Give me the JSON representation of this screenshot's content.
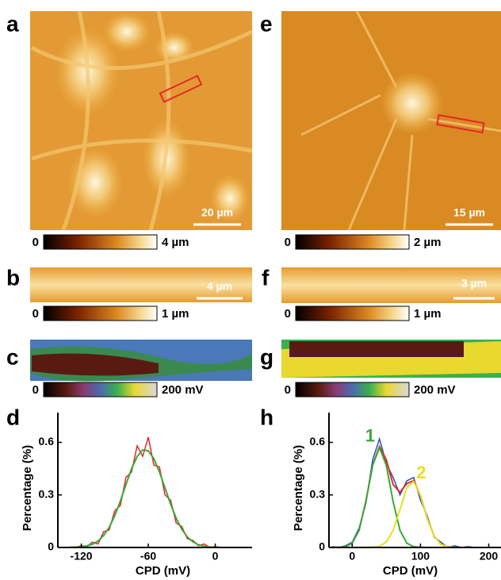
{
  "panels": {
    "a": {
      "label": "a",
      "scale_bar": "20 µm"
    },
    "b": {
      "label": "b",
      "scale_bar": "4 µm"
    },
    "c": {
      "label": "c"
    },
    "d": {
      "label": "d"
    },
    "e": {
      "label": "e",
      "scale_bar": "15 µm"
    },
    "f": {
      "label": "f",
      "scale_bar": "3 µm"
    },
    "g": {
      "label": "g"
    },
    "h": {
      "label": "h"
    }
  },
  "colorbars": [
    {
      "min": "0",
      "max": "4 µm"
    },
    {
      "min": "0",
      "max": "1 µm"
    },
    {
      "min": "0",
      "max": "200 mV"
    },
    {
      "min": "0",
      "max": "2 µm"
    },
    {
      "min": "0",
      "max": "1 µm"
    },
    {
      "min": "0",
      "max": "200 mV"
    }
  ],
  "chart_data": [
    {
      "type": "line",
      "x_label": "CPD (mV)",
      "y_label": "Percentage (%)",
      "xlim": [
        -141,
        33
      ],
      "ylim": [
        0,
        0.77
      ],
      "xticks": [
        -120,
        -60,
        0
      ],
      "yticks": [
        0,
        0.3,
        0.6
      ],
      "x": [
        -130,
        -125,
        -120,
        -115,
        -110,
        -105,
        -100,
        -95,
        -90,
        -85,
        -80,
        -75,
        -70,
        -65,
        -60,
        -55,
        -50,
        -45,
        -40,
        -35,
        -30,
        -25,
        -20,
        -15,
        -10,
        -5,
        0,
        5,
        10
      ],
      "series": [
        {
          "color": "#e8262b",
          "values": [
            0.003,
            0,
            0.01,
            0.005,
            0.03,
            0.02,
            0.09,
            0.1,
            0.21,
            0.24,
            0.4,
            0.43,
            0.58,
            0.52,
            0.63,
            0.47,
            0.46,
            0.3,
            0.27,
            0.14,
            0.12,
            0.05,
            0.04,
            0.01,
            0.02,
            0,
            0.005,
            0,
            0
          ]
        },
        {
          "color": "#3aa83a",
          "values": [
            0.001,
            0.002,
            0.004,
            0.009,
            0.018,
            0.037,
            0.068,
            0.115,
            0.182,
            0.265,
            0.359,
            0.449,
            0.519,
            0.557,
            0.552,
            0.507,
            0.431,
            0.34,
            0.248,
            0.167,
            0.104,
            0.06,
            0.032,
            0.016,
            0.007,
            0.003,
            0.001,
            0,
            0
          ]
        }
      ]
    },
    {
      "type": "line",
      "x_label": "CPD (mV)",
      "y_label": "Percentage (%)",
      "xlim": [
        -34,
        218
      ],
      "ylim": [
        0,
        0.77
      ],
      "xticks": [
        0,
        100,
        200
      ],
      "yticks": [
        0,
        0.3,
        0.6
      ],
      "x": [
        -30,
        -20,
        -10,
        0,
        10,
        20,
        30,
        40,
        50,
        60,
        70,
        80,
        90,
        100,
        110,
        120,
        130,
        140,
        150,
        160,
        170,
        180,
        190,
        200
      ],
      "series": [
        {
          "color": "#2d4fb3",
          "values": [
            0.005,
            0,
            0.01,
            0.03,
            0.11,
            0.25,
            0.5,
            0.62,
            0.48,
            0.4,
            0.3,
            0.38,
            0.4,
            0.27,
            0.18,
            0.06,
            0.03,
            0,
            0.01,
            0,
            0.005,
            0,
            0,
            0
          ]
        },
        {
          "color": "#e8262b",
          "values": [
            0,
            0.001,
            0.004,
            0.025,
            0.098,
            0.262,
            0.471,
            0.577,
            0.5,
            0.359,
            0.315,
            0.365,
            0.381,
            0.297,
            0.165,
            0.065,
            0.018,
            0.004,
            0.001,
            0,
            0,
            0,
            0,
            0
          ]
        },
        {
          "color": "#3aa83a",
          "values": [
            0,
            0.001,
            0.004,
            0.025,
            0.098,
            0.261,
            0.469,
            0.57,
            0.469,
            0.261,
            0.098,
            0.025,
            0.004,
            0.001,
            0,
            0,
            0,
            0,
            0,
            0,
            0,
            0,
            0,
            0
          ]
        },
        {
          "color": "#e6e020",
          "values": [
            0,
            0,
            0,
            0,
            0,
            0.001,
            0.002,
            0.007,
            0.031,
            0.098,
            0.217,
            0.34,
            0.377,
            0.296,
            0.165,
            0.065,
            0.018,
            0.004,
            0.001,
            0,
            0,
            0,
            0,
            0
          ]
        }
      ],
      "annotations": [
        {
          "text": "1",
          "color": "#3aa83a"
        },
        {
          "text": "2",
          "color": "#e6e020"
        }
      ]
    }
  ]
}
